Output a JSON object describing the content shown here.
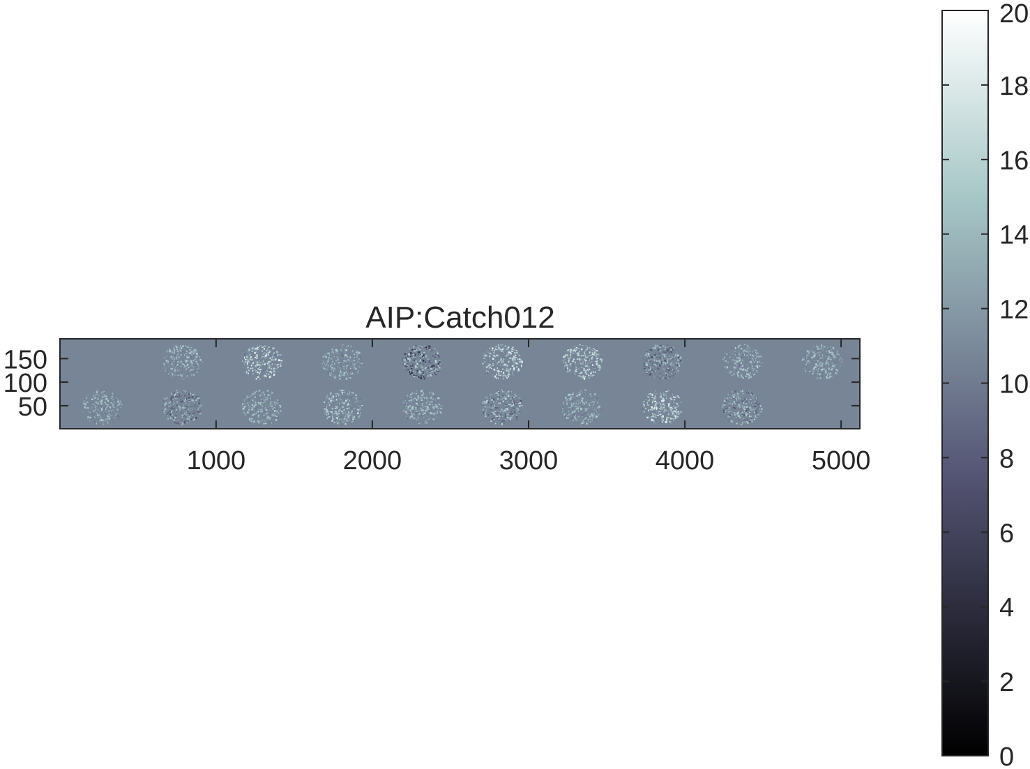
{
  "chart_data": {
    "type": "heatmap",
    "title": "AIP:Catch012",
    "colormap": "bone",
    "xlabel": "",
    "ylabel": "",
    "xlim": [
      1,
      5120
    ],
    "ylim": [
      1,
      192
    ],
    "x_ticks": [
      1000,
      2000,
      3000,
      4000,
      5000
    ],
    "y_ticks": [
      50,
      100,
      150
    ],
    "colorbar": {
      "min": 0,
      "max": 20,
      "ticks": [
        0,
        2,
        4,
        6,
        8,
        10,
        12,
        14,
        16,
        18,
        20
      ]
    },
    "background_value": 10.7,
    "montage": {
      "rows": 2,
      "cols": 10,
      "tile_width": 512,
      "tile_height": 96,
      "description_tiles": [
        {
          "row": 1,
          "col": 1,
          "present": false
        },
        {
          "row": 1,
          "col": 2,
          "present": true,
          "min": 9.5,
          "max": 16
        },
        {
          "row": 1,
          "col": 3,
          "present": true,
          "min": 9.5,
          "max": 19
        },
        {
          "row": 1,
          "col": 4,
          "present": true,
          "min": 9.5,
          "max": 16
        },
        {
          "row": 1,
          "col": 5,
          "present": true,
          "min": 4,
          "max": 17
        },
        {
          "row": 1,
          "col": 6,
          "present": true,
          "min": 9.5,
          "max": 19
        },
        {
          "row": 1,
          "col": 7,
          "present": true,
          "min": 9.5,
          "max": 19
        },
        {
          "row": 1,
          "col": 8,
          "present": true,
          "min": 6,
          "max": 16
        },
        {
          "row": 1,
          "col": 9,
          "present": true,
          "min": 9.5,
          "max": 16
        },
        {
          "row": 1,
          "col": 10,
          "present": true,
          "min": 9.5,
          "max": 16
        },
        {
          "row": 2,
          "col": 1,
          "present": true,
          "min": 9.5,
          "max": 16
        },
        {
          "row": 2,
          "col": 2,
          "present": true,
          "min": 6,
          "max": 16
        },
        {
          "row": 2,
          "col": 3,
          "present": true,
          "min": 9.5,
          "max": 16
        },
        {
          "row": 2,
          "col": 4,
          "present": true,
          "min": 9.5,
          "max": 17
        },
        {
          "row": 2,
          "col": 5,
          "present": true,
          "min": 9.5,
          "max": 16
        },
        {
          "row": 2,
          "col": 6,
          "present": true,
          "min": 7,
          "max": 17
        },
        {
          "row": 2,
          "col": 7,
          "present": true,
          "min": 9.5,
          "max": 16
        },
        {
          "row": 2,
          "col": 8,
          "present": true,
          "min": 9.5,
          "max": 19
        },
        {
          "row": 2,
          "col": 9,
          "present": true,
          "min": 7,
          "max": 16
        },
        {
          "row": 2,
          "col": 10,
          "present": false
        }
      ]
    }
  }
}
